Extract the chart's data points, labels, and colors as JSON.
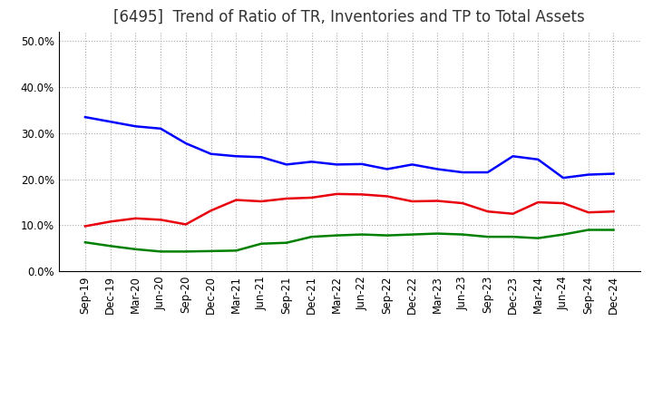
{
  "title": "[6495]  Trend of Ratio of TR, Inventories and TP to Total Assets",
  "x_labels": [
    "Sep-19",
    "Dec-19",
    "Mar-20",
    "Jun-20",
    "Sep-20",
    "Dec-20",
    "Mar-21",
    "Jun-21",
    "Sep-21",
    "Dec-21",
    "Mar-22",
    "Jun-22",
    "Sep-22",
    "Dec-22",
    "Mar-23",
    "Jun-23",
    "Sep-23",
    "Dec-23",
    "Mar-24",
    "Jun-24",
    "Sep-24",
    "Dec-24"
  ],
  "trade_receivables": [
    0.098,
    0.108,
    0.115,
    0.112,
    0.102,
    0.132,
    0.155,
    0.152,
    0.158,
    0.16,
    0.168,
    0.167,
    0.163,
    0.152,
    0.153,
    0.148,
    0.13,
    0.125,
    0.15,
    0.148,
    0.128,
    0.13
  ],
  "inventories": [
    0.335,
    0.325,
    0.315,
    0.31,
    0.278,
    0.255,
    0.25,
    0.248,
    0.232,
    0.238,
    0.232,
    0.233,
    0.222,
    0.232,
    0.222,
    0.215,
    0.215,
    0.25,
    0.243,
    0.203,
    0.21,
    0.212
  ],
  "trade_payables": [
    0.063,
    0.055,
    0.048,
    0.043,
    0.043,
    0.044,
    0.045,
    0.06,
    0.062,
    0.075,
    0.078,
    0.08,
    0.078,
    0.08,
    0.082,
    0.08,
    0.075,
    0.075,
    0.072,
    0.08,
    0.09,
    0.09
  ],
  "tr_color": "#e8000d",
  "inv_color": "#0000ff",
  "tp_color": "#008000",
  "ylim": [
    0.0,
    0.52
  ],
  "yticks": [
    0.0,
    0.1,
    0.2,
    0.3,
    0.4,
    0.5
  ],
  "background_color": "#ffffff",
  "grid_color": "#aaaaaa",
  "title_fontsize": 12,
  "legend_fontsize": 10,
  "tick_fontsize": 8.5
}
